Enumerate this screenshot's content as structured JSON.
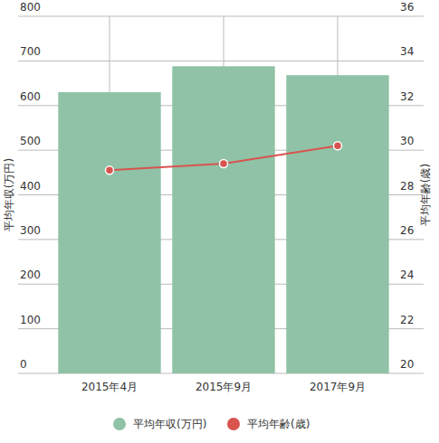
{
  "chart_data": {
    "type": "bar",
    "categories": [
      "2015年4月",
      "2015年9月",
      "2017年9月"
    ],
    "series": [
      {
        "name": "平均年収(万円)",
        "color": "#8fc2a6",
        "type": "bar",
        "values": [
          630,
          688,
          668
        ]
      },
      {
        "name": "平均年齢(歳)",
        "color": "#d9534f",
        "type": "line",
        "axis": "y2",
        "marker": "circle",
        "values": [
          29.1,
          29.4,
          30.2
        ]
      }
    ],
    "y_label": "平均年収(万円)",
    "y2_label": "平均年齢(歳)",
    "ylim": [
      0,
      800
    ],
    "yticks": [
      0,
      100,
      200,
      300,
      400,
      500,
      600,
      700,
      800
    ],
    "y2lim": [
      20,
      36
    ],
    "y2ticks": [
      20,
      22,
      24,
      26,
      28,
      30,
      32,
      34,
      36
    ],
    "grid": true,
    "legend": "bottom"
  }
}
